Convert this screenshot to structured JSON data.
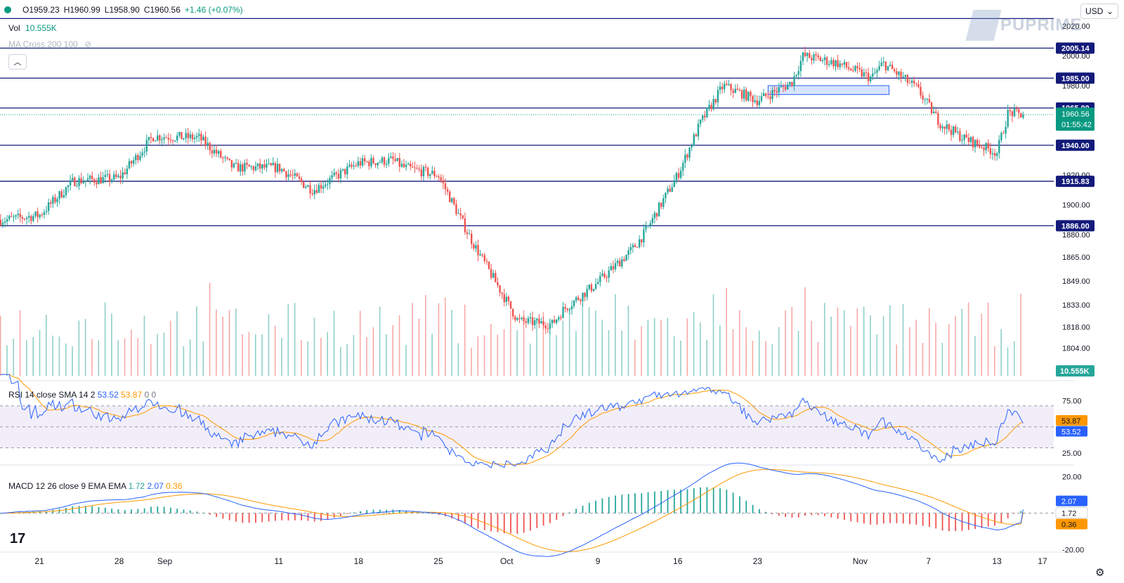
{
  "header": {
    "open": "O1959.23",
    "high": "H1960.99",
    "low": "L1958.90",
    "close": "C1960.56",
    "change": "+1.46 (+0.07%)",
    "vol_label": "Vol",
    "vol_value": "10.555K",
    "ma_label": "MA Cross 200 100",
    "currency": "USD",
    "brand": "PUPRIME"
  },
  "price_pane": {
    "ylim": [
      1783,
      2028
    ],
    "tick_labels": [
      "2020.00",
      "2000.00",
      "1980.00",
      "1920.00",
      "1900.00",
      "1880.00",
      "1865.00",
      "1849.00",
      "1833.00",
      "1818.00",
      "1804.00"
    ],
    "levels": [
      {
        "label": "2005.14",
        "value": 2005.14
      },
      {
        "label": "1985.00",
        "value": 1985.0
      },
      {
        "label": "1965.00",
        "value": 1965.0
      },
      {
        "label": "1940.00",
        "value": 1940.0
      },
      {
        "label": "1915.83",
        "value": 1915.83
      },
      {
        "label": "1886.00",
        "value": 1886.0
      }
    ],
    "top_line_value": 2025,
    "current_price": {
      "value": 1960.56,
      "label": "1960.56",
      "countdown": "01:55:42"
    },
    "volume_label": "10.555K",
    "zone": {
      "start_date": "Oct 23",
      "end_date": "Nov 2",
      "low": 1974,
      "high": 1980
    }
  },
  "rsi_pane": {
    "legend": {
      "name": "RSI 14 close SMA 14 2",
      "rsi": "53.52",
      "sma": "53.87",
      "extra": "0 0"
    },
    "ylim": [
      15,
      90
    ],
    "upper": 70,
    "middle": 50,
    "lower": 30,
    "tick_labels": [
      "75.00",
      "25.00"
    ],
    "last_rsi": {
      "label": "53.52",
      "value": 53.52
    },
    "last_sma": {
      "label": "53.87",
      "value": 53.87
    }
  },
  "macd_pane": {
    "legend": {
      "name": "MACD 12 26 close 9 EMA EMA",
      "hist": "1.72",
      "macd": "2.07",
      "signal": "0.36"
    },
    "ylim": [
      -24,
      26
    ],
    "tick_labels": [
      "20.00",
      "-20.00"
    ],
    "last_macd": {
      "label": "2.07",
      "value": 2.07
    },
    "last_hist": {
      "label": "1.72",
      "value": 1.72
    },
    "last_signal": {
      "label": "0.36",
      "value": 0.36
    }
  },
  "x_axis": {
    "labels": [
      "21",
      "28",
      "Sep",
      "11",
      "18",
      "25",
      "Oct",
      "9",
      "16",
      "23",
      "Nov",
      "7",
      "13",
      "17"
    ]
  },
  "colors": {
    "up": "#26a69a",
    "down": "#ef5350",
    "level": "#131a7a",
    "rsi": "#2962ff",
    "sma": "#ff9800",
    "vol_up": "#8fd0c8",
    "vol_down": "#f7a9a7"
  },
  "chart_data": {
    "type": "candlestick",
    "timeframe": "4H",
    "series": [
      {
        "name": "close",
        "points": [
          [
            "Aug 18",
            1890
          ],
          [
            "Aug 21",
            1893
          ],
          [
            "Aug 24",
            1916
          ],
          [
            "Aug 28",
            1918
          ],
          [
            "Aug 31",
            1946
          ],
          [
            "Sep 4",
            1945
          ],
          [
            "Sep 7",
            1925
          ],
          [
            "Sep 11",
            1925
          ],
          [
            "Sep 14",
            1910
          ],
          [
            "Sep 18",
            1928
          ],
          [
            "Sep 21",
            1930
          ],
          [
            "Sep 22",
            1925
          ],
          [
            "Sep 25",
            1920
          ],
          [
            "Sep 28",
            1875
          ],
          [
            "Oct 2",
            1822
          ],
          [
            "Oct 5",
            1820
          ],
          [
            "Oct 6",
            1830
          ],
          [
            "Oct 9",
            1848
          ],
          [
            "Oct 12",
            1870
          ],
          [
            "Oct 13",
            1880
          ],
          [
            "Oct 16",
            1920
          ],
          [
            "Oct 18",
            1955
          ],
          [
            "Oct 20",
            1980
          ],
          [
            "Oct 23",
            1970
          ],
          [
            "Oct 26",
            1982
          ],
          [
            "Oct 27",
            2000
          ],
          [
            "Oct 30",
            1995
          ],
          [
            "Nov 2",
            1985
          ],
          [
            "Nov 3",
            1995
          ],
          [
            "Nov 6",
            1978
          ],
          [
            "Nov 8",
            1955
          ],
          [
            "Nov 10",
            1945
          ],
          [
            "Nov 13",
            1935
          ],
          [
            "Nov 14",
            1962
          ],
          [
            "Nov 15",
            1960.56
          ]
        ]
      }
    ]
  }
}
